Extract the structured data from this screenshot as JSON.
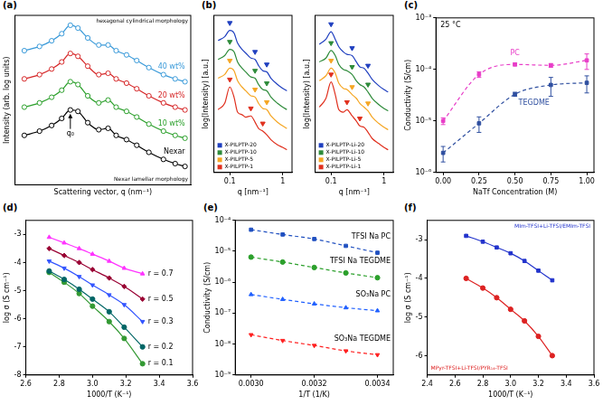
{
  "chart_data": [
    {
      "panel": "(a)",
      "type": "line",
      "x_label": "Scattering vector, q (nm⁻¹)",
      "y_label": "Intensity (arb. log units)",
      "log": "x",
      "xlim": [
        0.06,
        1.1
      ],
      "ylim": [
        -0.5,
        11.5
      ],
      "tick_labels": false,
      "grid": false,
      "legend": "inline",
      "annotations": [
        "q₀",
        "hexagonal cylindrical morphology",
        "Nexar lamellar morphology"
      ],
      "x": [
        0.07,
        0.09,
        0.11,
        0.13,
        0.15,
        0.17,
        0.2,
        0.24,
        0.28,
        0.32,
        0.38,
        0.45,
        0.55,
        0.7,
        0.85,
        1.0
      ],
      "series": [
        {
          "name": "Nexar",
          "color": "#000000",
          "marker": "open_circle",
          "line_style": "solid",
          "values": [
            3.0,
            3.3,
            3.7,
            4.2,
            4.8,
            4.7,
            3.9,
            3.4,
            3.5,
            3.0,
            2.7,
            2.3,
            1.8,
            1.3,
            1.0,
            0.8
          ]
        },
        {
          "name": "10 wt%",
          "color": "#2ca02c",
          "marker": "open_circle",
          "line_style": "solid",
          "values": [
            5.0,
            5.3,
            5.7,
            6.2,
            6.8,
            6.6,
            5.8,
            5.3,
            5.5,
            5.0,
            4.7,
            4.3,
            3.8,
            3.3,
            3.0,
            2.8
          ]
        },
        {
          "name": "20 wt%",
          "color": "#d62728",
          "marker": "open_circle",
          "line_style": "solid",
          "values": [
            7.0,
            7.3,
            7.7,
            8.2,
            8.8,
            8.6,
            7.9,
            7.3,
            7.4,
            7.0,
            6.7,
            6.3,
            5.8,
            5.3,
            5.0,
            4.8
          ]
        },
        {
          "name": "40 wt%",
          "color": "#3a9ad9",
          "marker": "open_circle",
          "line_style": "solid",
          "values": [
            9.0,
            9.3,
            9.7,
            10.2,
            10.8,
            10.6,
            9.9,
            9.4,
            9.4,
            9.0,
            8.7,
            8.3,
            7.8,
            7.3,
            7.0,
            6.8
          ]
        }
      ]
    },
    {
      "panel": "(b)",
      "type": "line",
      "x_label": "q [nm⁻¹]",
      "y_label": "log(Intensity) [a.u.]",
      "log": "x",
      "xlim": [
        0.05,
        1.5
      ],
      "xticks": [
        0.1,
        1
      ],
      "ylim": [
        0,
        12.5
      ],
      "tick_labels": "x",
      "grid": false,
      "legend": "lower left",
      "x": [
        0.06,
        0.08,
        0.1,
        0.12,
        0.14,
        0.17,
        0.2,
        0.25,
        0.3,
        0.35,
        0.42,
        0.5,
        0.6,
        0.8,
        1.0,
        1.2
      ],
      "series": [
        {
          "name": "X-PILPTP-20",
          "color": "#1f3fbf",
          "marker": "none",
          "line_style": "solid",
          "values": [
            10.5,
            10.8,
            11.3,
            11.1,
            10.3,
            9.8,
            9.5,
            9.1,
            9.0,
            8.5,
            8.1,
            8.0,
            7.5,
            7.0,
            6.7,
            6.5
          ],
          "peaks": {
            "x": [
              0.1,
              0.3,
              0.5
            ],
            "y": [
              11.9,
              9.6,
              8.6
            ],
            "marker": "triangle_down"
          }
        },
        {
          "name": "X-PILPTP-10",
          "color": "#2e8b3a",
          "marker": "none",
          "line_style": "solid",
          "values": [
            9.0,
            9.3,
            9.8,
            9.6,
            8.8,
            8.3,
            8.0,
            7.6,
            7.5,
            7.0,
            6.6,
            6.5,
            6.0,
            5.5,
            5.2,
            5.0
          ],
          "peaks": {
            "x": [
              0.1,
              0.3,
              0.5
            ],
            "y": [
              10.4,
              8.1,
              7.1
            ],
            "marker": "triangle_down"
          }
        },
        {
          "name": "X-PILPTP-5",
          "color": "#f5a623",
          "marker": "none",
          "line_style": "solid",
          "values": [
            7.5,
            7.8,
            8.3,
            8.1,
            7.3,
            6.8,
            6.5,
            6.1,
            6.0,
            5.5,
            5.1,
            5.0,
            4.5,
            4.0,
            3.7,
            3.5
          ],
          "peaks": {
            "x": [
              0.1,
              0.3,
              0.5
            ],
            "y": [
              8.9,
              6.6,
              5.6
            ],
            "marker": "triangle_down"
          }
        },
        {
          "name": "X-PILPTP-1",
          "color": "#e0301e",
          "marker": "none",
          "line_style": "solid",
          "values": [
            5.0,
            5.5,
            6.8,
            6.0,
            4.8,
            4.6,
            4.4,
            4.5,
            4.0,
            3.5,
            3.3,
            3.0,
            2.6,
            2.2,
            2.0,
            1.8
          ],
          "peaks": {
            "x": [
              0.1,
              0.25,
              0.42
            ],
            "y": [
              7.4,
              5.1,
              3.9
            ],
            "marker": "triangle_down"
          }
        }
      ]
    },
    {
      "type": "line",
      "x_label": "q [nm⁻¹]",
      "y_label": "log(Intensity) [a.u.]",
      "log": "x",
      "xlim": [
        0.05,
        1.5
      ],
      "xticks": [
        0.1,
        1
      ],
      "ylim": [
        0,
        12.5
      ],
      "tick_labels": "x",
      "grid": false,
      "legend": "lower left",
      "x": [
        0.06,
        0.08,
        0.1,
        0.12,
        0.14,
        0.17,
        0.2,
        0.25,
        0.3,
        0.35,
        0.42,
        0.5,
        0.6,
        0.8,
        1.0,
        1.2
      ],
      "series": [
        {
          "name": "X-PILPTP-Li-20",
          "color": "#1f3fbf",
          "marker": "none",
          "line_style": "solid",
          "values": [
            10.2,
            10.6,
            11.2,
            10.6,
            10.0,
            9.6,
            9.4,
            9.3,
            8.8,
            8.4,
            8.3,
            7.9,
            7.4,
            6.9,
            6.6,
            6.4
          ],
          "peaks": {
            "x": [
              0.1,
              0.25,
              0.5
            ],
            "y": [
              11.8,
              9.9,
              8.5
            ],
            "marker": "triangle_down"
          }
        },
        {
          "name": "X-PILPTP-Li-10",
          "color": "#2e8b3a",
          "marker": "none",
          "line_style": "solid",
          "values": [
            8.8,
            9.1,
            9.7,
            9.3,
            8.6,
            8.2,
            8.1,
            7.8,
            7.3,
            7.0,
            6.8,
            6.4,
            5.9,
            5.4,
            5.1,
            4.9
          ],
          "peaks": {
            "x": [
              0.1,
              0.25,
              0.5
            ],
            "y": [
              10.3,
              8.4,
              7.0
            ],
            "marker": "triangle_down"
          }
        },
        {
          "name": "X-PILPTP-Li-5",
          "color": "#f5a623",
          "marker": "none",
          "line_style": "solid",
          "values": [
            7.3,
            7.7,
            8.3,
            7.9,
            7.1,
            6.7,
            6.6,
            6.2,
            5.9,
            5.5,
            5.2,
            4.9,
            4.4,
            3.9,
            3.6,
            3.4
          ],
          "peaks": {
            "x": [
              0.1,
              0.25,
              0.5
            ],
            "y": [
              8.9,
              6.8,
              5.5
            ],
            "marker": "triangle_down"
          }
        },
        {
          "name": "X-PILPTP-Li-1",
          "color": "#e0301e",
          "marker": "none",
          "line_style": "solid",
          "values": [
            5.2,
            5.9,
            7.2,
            6.2,
            5.0,
            4.8,
            5.0,
            4.5,
            4.1,
            3.7,
            3.6,
            3.2,
            2.7,
            2.3,
            2.0,
            1.8
          ],
          "peaks": {
            "x": [
              0.1,
              0.2,
              0.35
            ],
            "y": [
              7.8,
              5.6,
              4.3
            ],
            "marker": "triangle_down"
          }
        }
      ]
    },
    {
      "panel": "(c)",
      "type": "line",
      "title": "25 °C",
      "x_label": "NaTf Concentration (M)",
      "y_label": "Conductivity (S/cm)",
      "log": "y",
      "xlim": [
        -0.05,
        1.05
      ],
      "xticks": [
        {
          "value": 0,
          "label": "0.00"
        },
        0.25,
        {
          "value": 0.5,
          "label": "0.50"
        },
        0.75,
        {
          "value": 1,
          "label": "1.00"
        }
      ],
      "ylim": [
        1e-06,
        0.001
      ],
      "yticks": [
        {
          "value": 1e-06,
          "label": "10⁻⁶"
        },
        {
          "value": 1e-05,
          "label": "10⁻⁵"
        },
        {
          "value": 0.0001,
          "label": "10⁻⁴"
        },
        {
          "value": 0.001,
          "label": "10⁻³"
        }
      ],
      "grid": false,
      "legend": "inline",
      "x": [
        0,
        0.25,
        0.5,
        0.75,
        1.0
      ],
      "series": [
        {
          "name": "PC",
          "color": "#e83ec8",
          "marker": "square",
          "line_style": "dashed",
          "values": [
            1e-05,
            8e-05,
            0.000125,
            0.00012,
            0.00015
          ],
          "errors": [
            1.5e-06,
            1e-05,
            8e-06,
            1e-05,
            5e-05
          ]
        },
        {
          "name": "TEGDME",
          "color": "#3050a0",
          "marker": "square",
          "line_style": "dashed",
          "values": [
            2.4e-06,
            9e-06,
            3.3e-05,
            5e-05,
            5.5e-05
          ],
          "errors": [
            8e-07,
            3e-06,
            3e-06,
            2e-05,
            2e-05
          ]
        }
      ]
    },
    {
      "panel": "(d)",
      "type": "line",
      "x_label": "1000/T (K⁻¹)",
      "y_label": "log σ (S cm⁻¹)",
      "xlim": [
        2.6,
        3.6
      ],
      "xticks": [
        2.6,
        2.8,
        {
          "value": 3,
          "label": "3.0"
        },
        3.2,
        3.4,
        3.6
      ],
      "ylim": [
        -8,
        -2.5
      ],
      "yticks": [
        -8,
        -7,
        -6,
        -5,
        -4,
        -3
      ],
      "grid": false,
      "legend": "inline",
      "x": [
        2.74,
        2.83,
        2.92,
        3.0,
        3.1,
        3.19,
        3.3
      ],
      "series": [
        {
          "name": "r = 0.7",
          "color": "#ff33ff",
          "marker": "triangle",
          "line_style": "solid",
          "values": [
            -3.1,
            -3.3,
            -3.5,
            -3.7,
            -3.95,
            -4.2,
            -4.4
          ]
        },
        {
          "name": "r = 0.5",
          "color": "#990033",
          "marker": "diamond",
          "line_style": "solid",
          "values": [
            -3.5,
            -3.75,
            -4.0,
            -4.25,
            -4.55,
            -4.85,
            -5.3
          ]
        },
        {
          "name": "r = 0.3",
          "color": "#3355ff",
          "marker": "triangle_down",
          "line_style": "solid",
          "values": [
            -3.95,
            -4.2,
            -4.5,
            -4.8,
            -5.15,
            -5.5,
            -6.1
          ]
        },
        {
          "name": "r = 0.2",
          "color": "#006666",
          "marker": "circle",
          "line_style": "solid",
          "values": [
            -4.3,
            -4.6,
            -4.95,
            -5.3,
            -5.75,
            -6.3,
            -7.0
          ]
        },
        {
          "name": "r = 0.1",
          "color": "#339933",
          "marker": "circle",
          "line_style": "solid",
          "values": [
            -4.35,
            -4.7,
            -5.1,
            -5.55,
            -6.1,
            -6.7,
            -7.6
          ]
        }
      ]
    },
    {
      "panel": "(e)",
      "type": "line",
      "x_label": "1/T (1/K)",
      "y_label": "Conductivity (S/cm)",
      "log": "y",
      "xlim": [
        0.00295,
        0.00345
      ],
      "xticks": [
        {
          "value": 0.003,
          "label": "0.0030"
        },
        0.0032,
        0.0034
      ],
      "ylim": [
        1e-09,
        0.0001
      ],
      "yticks": [
        {
          "value": 1e-09,
          "label": "10⁻⁹"
        },
        {
          "value": 1e-08,
          "label": "10⁻⁸"
        },
        {
          "value": 1e-07,
          "label": "10⁻⁷"
        },
        {
          "value": 1e-06,
          "label": "10⁻⁶"
        },
        {
          "value": 1e-05,
          "label": "10⁻⁵"
        },
        {
          "value": 0.0001,
          "label": "10⁻⁴"
        }
      ],
      "grid": false,
      "legend": "inline",
      "x": [
        0.003,
        0.0031,
        0.0032,
        0.0033,
        0.0034
      ],
      "series": [
        {
          "name": "TFSI Na PC",
          "color": "#2050c0",
          "marker": "square",
          "line_style": "dashed",
          "values": [
            5e-05,
            3.5e-05,
            2.5e-05,
            1.5e-05,
            9e-06
          ]
        },
        {
          "name": "TFSI Na TEGDME",
          "color": "#2ca02c",
          "marker": "circle",
          "line_style": "dashed",
          "values": [
            6.5e-06,
            4.5e-06,
            3e-06,
            2e-06,
            1.4e-06
          ]
        },
        {
          "name": "SO₃Na PC",
          "color": "#2060ff",
          "marker": "triangle",
          "line_style": "dashed",
          "values": [
            4e-07,
            2.8e-07,
            2e-07,
            1.5e-07,
            1.2e-07
          ]
        },
        {
          "name": "SO₃Na TEGDME",
          "color": "#ff2020",
          "marker": "triangle_down",
          "line_style": "dashed",
          "values": [
            2e-08,
            1.3e-08,
            9e-09,
            6e-09,
            4.5e-09
          ]
        }
      ]
    },
    {
      "panel": "(f)",
      "type": "line",
      "x_label": "1000/T (K⁻¹)",
      "y_label": "log σ (S cm⁻¹)",
      "xlim": [
        2.4,
        3.6
      ],
      "xticks": [
        2.4,
        2.6,
        2.8,
        {
          "value": 3,
          "label": "3.0"
        },
        3.2,
        3.4,
        3.6
      ],
      "ylim": [
        -6.5,
        -2.5
      ],
      "yticks": [
        -6,
        -5,
        -4,
        -3
      ],
      "grid": false,
      "legend": "inline",
      "x": [
        2.68,
        2.8,
        2.9,
        3.0,
        3.1,
        3.2,
        3.3
      ],
      "series": [
        {
          "name": "MIm-TFSI+Li-TFSI/EMIm-TFSI",
          "color": "#2233cc",
          "marker": "square",
          "line_style": "solid",
          "values": [
            -2.9,
            -3.05,
            -3.2,
            -3.35,
            -3.55,
            -3.8,
            -4.05
          ]
        },
        {
          "name": "MPyr-TFSI+Li-TFSI/PYR₁₄-TFSI",
          "color": "#dd2222",
          "marker": "circle",
          "line_style": "solid",
          "values": [
            -4.0,
            -4.25,
            -4.5,
            -4.8,
            -5.1,
            -5.5,
            -6.0
          ]
        }
      ]
    }
  ]
}
